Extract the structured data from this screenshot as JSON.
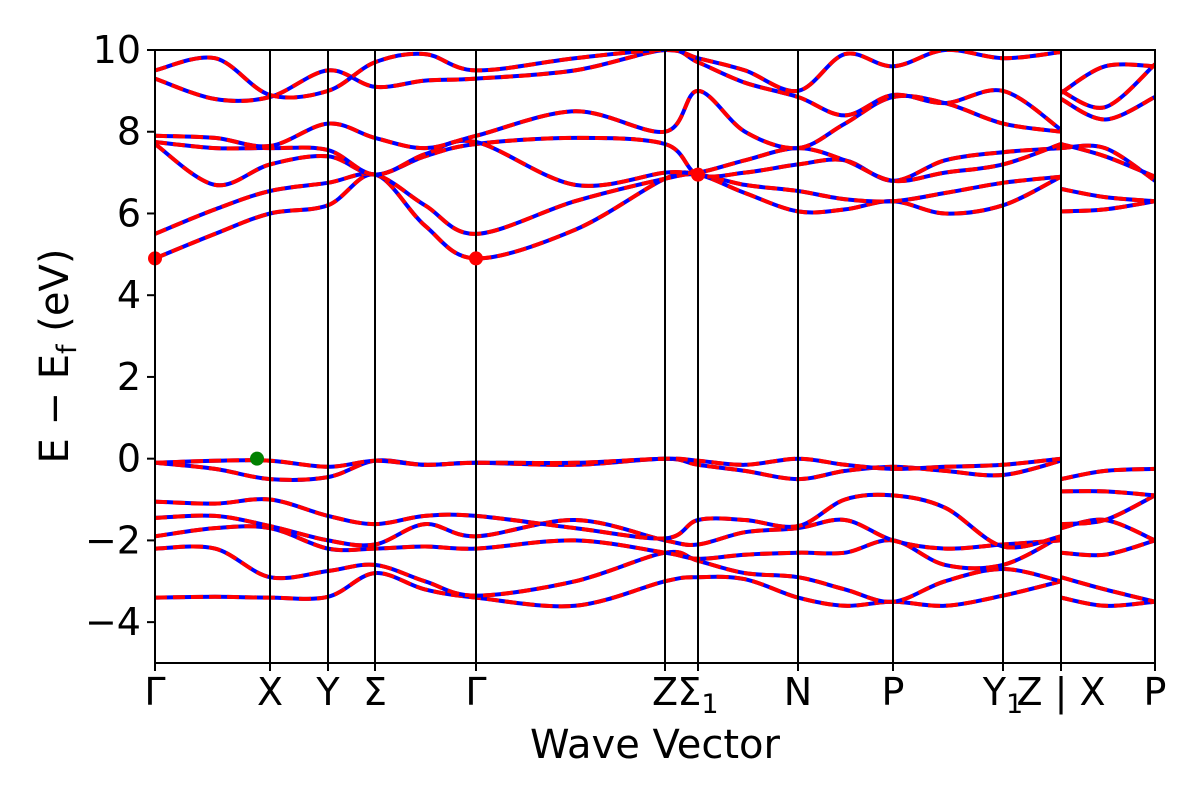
{
  "chart_data": {
    "type": "line",
    "title": "",
    "xlabel": "Wave Vector",
    "ylabel_main": "E − E",
    "ylabel_sub": "f",
    "ylabel_unit": " (eV)",
    "ylim": [
      -5,
      10
    ],
    "yticks": [
      -4,
      -2,
      0,
      2,
      4,
      6,
      8,
      10
    ],
    "ytick_labels": [
      "−4",
      "−2",
      "0",
      "2",
      "4",
      "6",
      "8",
      "10"
    ],
    "xlim": [
      0,
      10
    ],
    "grid": false,
    "legend": "none",
    "line_colors": {
      "dashed_over": "#ff0000",
      "under": "#0000ff"
    },
    "high_symmetry_points": [
      {
        "x": 0.0,
        "label": "Γ"
      },
      {
        "x": 1.15,
        "label": "X"
      },
      {
        "x": 1.73,
        "label": "Y"
      },
      {
        "x": 2.2,
        "label": "Σ"
      },
      {
        "x": 3.21,
        "label": "Γ"
      },
      {
        "x": 5.1,
        "label": "Z"
      },
      {
        "x": 5.43,
        "label": "Σ",
        "sub": "1"
      },
      {
        "x": 6.43,
        "label": "N"
      },
      {
        "x": 7.38,
        "label": "P"
      },
      {
        "x": 8.48,
        "label": "Y",
        "sub": "1"
      },
      {
        "x": 9.06,
        "label": "Z | X"
      },
      {
        "x": 10.0,
        "label": "P"
      }
    ],
    "markers": [
      {
        "name": "cbm-marker",
        "x": 0.0,
        "y": 4.9,
        "color": "#ff0000"
      },
      {
        "name": "cbm-marker",
        "x": 3.21,
        "y": 4.9,
        "color": "#ff0000"
      },
      {
        "name": "vbm-marker",
        "x": 1.02,
        "y": 0.0,
        "color": "#008000"
      },
      {
        "name": "degeneracy-marker",
        "x": 5.43,
        "y": 6.95,
        "color": "#ff0000"
      }
    ],
    "bands": [
      {
        "name": "band-v1",
        "x": [
          0,
          0.6,
          1.15,
          1.73,
          2.2,
          2.7,
          3.21,
          4.2,
          5.1,
          5.43,
          5.9,
          6.43,
          6.9,
          7.38,
          7.9,
          8.48,
          9.06,
          9.06,
          9.5,
          10
        ],
        "y": [
          -3.4,
          -3.38,
          -3.4,
          -3.38,
          -2.8,
          -3.2,
          -3.4,
          -3.6,
          -3.0,
          -2.9,
          -2.95,
          -3.4,
          -3.6,
          -3.5,
          -3.6,
          -3.35,
          -3.0,
          -3.4,
          -3.6,
          -3.5
        ]
      },
      {
        "name": "band-v2",
        "x": [
          0,
          0.6,
          1.15,
          1.73,
          2.2,
          2.7,
          3.21,
          4.2,
          5.1,
          5.43,
          5.9,
          6.43,
          6.9,
          7.38,
          7.9,
          8.48,
          9.06,
          9.06,
          9.5,
          10
        ],
        "y": [
          -2.2,
          -2.2,
          -2.9,
          -2.75,
          -2.6,
          -3.0,
          -3.35,
          -3.0,
          -2.3,
          -2.5,
          -2.8,
          -2.9,
          -3.2,
          -3.5,
          -3.0,
          -2.7,
          -3.0,
          -2.9,
          -3.2,
          -3.5
        ]
      },
      {
        "name": "band-v3",
        "x": [
          0,
          0.6,
          1.15,
          1.73,
          2.2,
          2.7,
          3.21,
          4.2,
          5.1,
          5.43,
          5.9,
          6.43,
          6.9,
          7.38,
          7.9,
          8.48,
          9.06,
          9.06,
          9.5,
          10
        ],
        "y": [
          -1.9,
          -1.7,
          -1.7,
          -2.2,
          -2.2,
          -2.15,
          -2.2,
          -2.0,
          -2.3,
          -2.45,
          -2.35,
          -2.3,
          -2.3,
          -2.0,
          -2.6,
          -2.6,
          -1.9,
          -2.3,
          -2.35,
          -2.0
        ]
      },
      {
        "name": "band-v4",
        "x": [
          0,
          0.6,
          1.15,
          1.73,
          2.2,
          2.7,
          3.21,
          4.2,
          5.1,
          5.43,
          5.9,
          6.43,
          6.9,
          7.38,
          7.9,
          8.48,
          9.06,
          9.06,
          9.5,
          10
        ],
        "y": [
          -1.45,
          -1.4,
          -1.65,
          -2.0,
          -2.1,
          -1.6,
          -1.9,
          -1.5,
          -2.0,
          -2.1,
          -1.8,
          -1.7,
          -1.5,
          -2.0,
          -2.2,
          -2.1,
          -2.0,
          -1.7,
          -1.5,
          -2.0
        ]
      },
      {
        "name": "band-v5",
        "x": [
          0,
          0.6,
          1.15,
          1.73,
          2.2,
          2.7,
          3.21,
          4.2,
          5.1,
          5.43,
          5.9,
          6.43,
          6.9,
          7.38,
          7.9,
          8.48,
          9.06,
          9.06,
          9.5,
          10
        ],
        "y": [
          -1.05,
          -1.1,
          -1.0,
          -1.4,
          -1.6,
          -1.4,
          -1.4,
          -1.7,
          -1.95,
          -1.5,
          -1.5,
          -1.65,
          -1.0,
          -0.9,
          -1.2,
          -2.15,
          -1.9,
          -1.6,
          -1.5,
          -0.9
        ]
      },
      {
        "name": "band-v6",
        "x": [
          0,
          0.6,
          1.15,
          1.73,
          2.2,
          2.7,
          3.21,
          4.2,
          5.1,
          5.43,
          5.9,
          6.43,
          6.9,
          7.38,
          7.9,
          8.48,
          9.06,
          9.06,
          9.5,
          10
        ],
        "y": [
          -0.1,
          -0.25,
          -0.5,
          -0.45,
          -0.05,
          -0.15,
          -0.1,
          -0.15,
          0.0,
          -0.15,
          -0.3,
          -0.5,
          -0.3,
          -0.2,
          -0.3,
          -0.4,
          -0.05,
          -0.8,
          -0.8,
          -0.9
        ]
      },
      {
        "name": "band-v7",
        "x": [
          0,
          0.6,
          1.15,
          1.73,
          2.2,
          2.7,
          3.21,
          4.2,
          5.1,
          5.43,
          5.9,
          6.43,
          6.9,
          7.38,
          7.9,
          8.48,
          9.06,
          9.06,
          9.5,
          10
        ],
        "y": [
          -0.1,
          -0.05,
          -0.05,
          -0.2,
          -0.05,
          -0.15,
          -0.1,
          -0.1,
          0.0,
          -0.05,
          -0.15,
          0.0,
          -0.15,
          -0.25,
          -0.2,
          -0.15,
          0.0,
          -0.5,
          -0.3,
          -0.25
        ]
      },
      {
        "name": "band-c1",
        "x": [
          0,
          0.6,
          1.15,
          1.73,
          2.2,
          2.7,
          3.21,
          4.2,
          5.1,
          5.43,
          5.9,
          6.43,
          6.9,
          7.38,
          7.9,
          8.48,
          9.06,
          9.06,
          9.5,
          10
        ],
        "y": [
          4.9,
          5.5,
          6.0,
          6.2,
          6.95,
          5.7,
          4.9,
          5.6,
          6.85,
          6.95,
          6.5,
          6.05,
          6.1,
          6.3,
          6.0,
          6.2,
          6.9,
          6.05,
          6.1,
          6.3
        ]
      },
      {
        "name": "band-c2",
        "x": [
          0,
          0.6,
          1.15,
          1.73,
          2.2,
          2.7,
          3.21,
          4.2,
          5.1,
          5.43,
          5.9,
          6.43,
          6.9,
          7.38,
          7.9,
          8.48,
          9.06,
          9.06,
          9.5,
          10
        ],
        "y": [
          5.5,
          6.1,
          6.55,
          6.75,
          6.95,
          6.2,
          5.5,
          6.3,
          6.85,
          6.95,
          6.7,
          6.55,
          6.35,
          6.3,
          6.5,
          6.75,
          6.9,
          6.6,
          6.4,
          6.3
        ]
      },
      {
        "name": "band-c3",
        "x": [
          0,
          0.6,
          1.15,
          1.73,
          2.2,
          2.7,
          3.21,
          4.2,
          5.1,
          5.43,
          5.9,
          6.43,
          6.9,
          7.38,
          7.9,
          8.48,
          9.06,
          9.06,
          9.5,
          10
        ],
        "y": [
          7.7,
          6.7,
          7.2,
          7.4,
          6.95,
          7.4,
          7.7,
          7.85,
          7.7,
          6.95,
          7.0,
          7.2,
          7.3,
          6.8,
          7.3,
          7.5,
          7.6,
          7.6,
          7.6,
          6.8
        ]
      },
      {
        "name": "band-c4",
        "x": [
          0,
          0.6,
          1.15,
          1.73,
          2.2,
          2.7,
          3.21,
          4.2,
          5.1,
          5.43,
          5.9,
          6.43,
          6.9,
          7.38,
          7.9,
          8.48,
          9.06,
          9.06,
          9.5,
          10
        ],
        "y": [
          7.75,
          7.6,
          7.6,
          7.55,
          6.95,
          7.45,
          7.75,
          6.7,
          7.0,
          7.0,
          7.3,
          7.6,
          7.3,
          6.8,
          7.0,
          7.2,
          7.7,
          7.7,
          7.4,
          6.9
        ]
      },
      {
        "name": "band-c5",
        "x": [
          0,
          0.6,
          1.15,
          1.73,
          2.2,
          2.7,
          3.21,
          4.2,
          5.1,
          5.43,
          5.9,
          6.43,
          6.9,
          7.38,
          7.9,
          8.48,
          9.06,
          9.06,
          9.5,
          10
        ],
        "y": [
          7.9,
          7.85,
          7.65,
          8.2,
          7.85,
          7.6,
          7.9,
          8.5,
          8.0,
          9.0,
          8.0,
          7.6,
          8.2,
          8.85,
          8.7,
          8.2,
          8.0,
          8.8,
          8.3,
          8.85
        ]
      },
      {
        "name": "band-c6",
        "x": [
          0,
          0.6,
          1.15,
          1.73,
          2.2,
          2.7,
          3.21,
          4.2,
          5.1,
          5.43,
          5.9,
          6.43,
          6.9,
          7.38,
          7.9,
          8.48,
          9.06,
          9.06,
          9.5,
          10
        ],
        "y": [
          9.3,
          8.8,
          8.85,
          9.5,
          9.1,
          9.25,
          9.3,
          9.5,
          10.0,
          9.7,
          9.2,
          8.85,
          8.4,
          8.9,
          8.7,
          9.0,
          8.05,
          8.95,
          9.6,
          9.6
        ]
      },
      {
        "name": "band-c7",
        "x": [
          0,
          0.6,
          1.15,
          1.73,
          2.2,
          2.7,
          3.21,
          4.2,
          5.1,
          5.43,
          5.9,
          6.43,
          6.9,
          7.38,
          7.9,
          8.48,
          9.06,
          9.06,
          9.5,
          10
        ],
        "y": [
          9.5,
          9.8,
          8.9,
          9.0,
          9.7,
          9.9,
          9.5,
          9.8,
          10.0,
          9.8,
          9.5,
          9.0,
          9.9,
          9.6,
          10.0,
          9.8,
          9.95,
          9.0,
          8.6,
          9.65
        ]
      }
    ]
  }
}
